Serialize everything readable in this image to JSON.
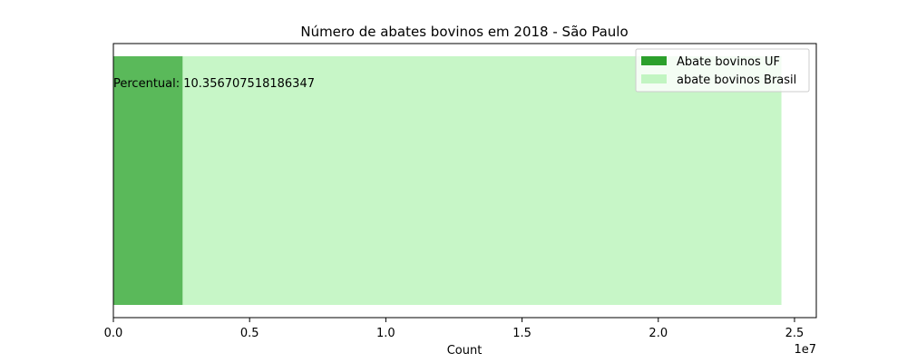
{
  "chart_data": {
    "type": "bar",
    "orientation": "horizontal",
    "title": "Número de abates bovinos em 2018 - São Paulo",
    "xlabel": "Count",
    "ylabel": "",
    "xlim": [
      0,
      25800000
    ],
    "x_ticks": [
      0,
      5000000,
      10000000,
      15000000,
      20000000,
      25000000
    ],
    "x_tick_labels": [
      "0.0",
      "0.5",
      "1.0",
      "1.5",
      "2.0",
      "2.5"
    ],
    "x_offset_label": "1e7",
    "series": [
      {
        "name": "Abate bovinos UF",
        "value": 2540000,
        "color": "#2ca02c",
        "alpha": 0.7
      },
      {
        "name": "abate bovinos Brasil",
        "value": 24520000,
        "color": "#90ee90",
        "alpha": 0.5
      }
    ],
    "annotation": "Percentual: 10.356707518186347",
    "legend_position": "upper right",
    "grid": false
  }
}
